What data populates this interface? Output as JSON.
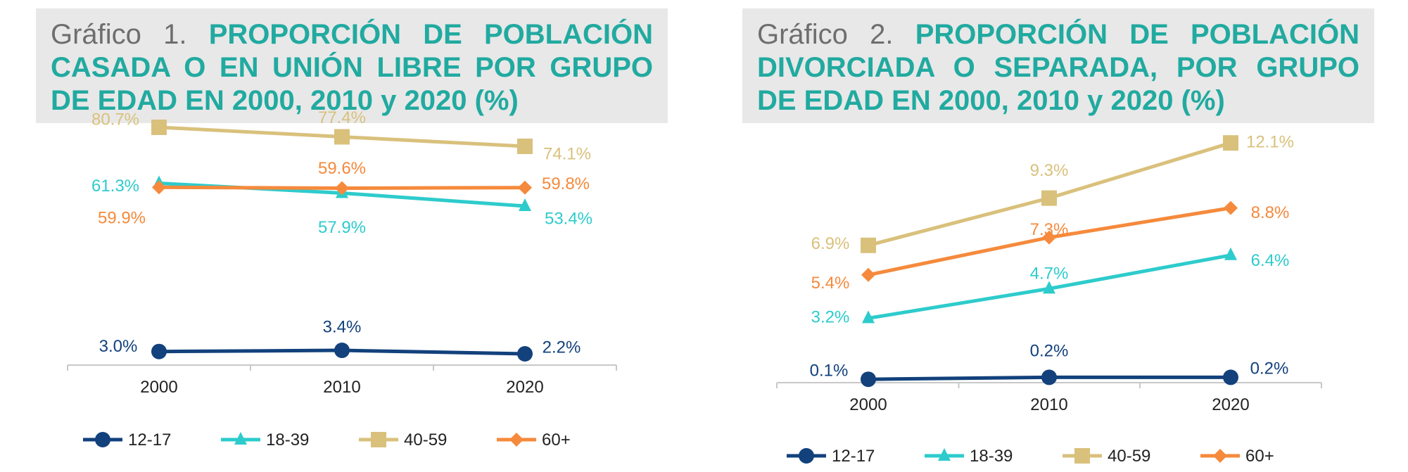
{
  "colors": {
    "s12_17": "#12417c",
    "s18_39": "#2ecbcc",
    "s40_59": "#d9c17c",
    "s60p": "#f58a3c",
    "title_accent": "#21aaa0",
    "title_prefix": "#6e6e6e",
    "title_bg": "#e8e8e8"
  },
  "chart_data": [
    {
      "type": "line",
      "title_prefix": "Gráfico 1.",
      "title": "PROPORCIÓN DE POBLACIÓN CASADA O EN UNIÓN LIBRE POR GRUPO DE EDAD EN 2000, 2010 y 2020 (%)",
      "xlabel": "",
      "ylabel": "",
      "x": [
        "2000",
        "2010",
        "2020"
      ],
      "ylim": [
        0,
        90
      ],
      "grid": false,
      "legend_position": "bottom",
      "series": [
        {
          "name": "12-17",
          "marker": "circle",
          "values": [
            3.0,
            3.4,
            2.2
          ],
          "labels": [
            "3.0%",
            "3.4%",
            "2.2%"
          ]
        },
        {
          "name": "18-39",
          "marker": "triangle",
          "values": [
            61.3,
            57.9,
            53.4
          ],
          "labels": [
            "61.3%",
            "57.9%",
            "53.4%"
          ]
        },
        {
          "name": "40-59",
          "marker": "square",
          "values": [
            80.7,
            77.4,
            74.1
          ],
          "labels": [
            "80.7%",
            "77.4%",
            "74.1%"
          ]
        },
        {
          "name": "60+",
          "marker": "diamond",
          "values": [
            59.9,
            59.6,
            59.8
          ],
          "labels": [
            "59.9%",
            "59.6%",
            "59.8%"
          ]
        }
      ]
    },
    {
      "type": "line",
      "title_prefix": "Gráfico 2.",
      "title": "PROPORCIÓN DE POBLACIÓN DIVORCIADA O SEPARADA, POR GRUPO DE EDAD EN 2000, 2010 y 2020 (%)",
      "xlabel": "",
      "ylabel": "",
      "x": [
        "2000",
        "2010",
        "2020"
      ],
      "ylim": [
        0,
        14
      ],
      "grid": false,
      "legend_position": "bottom",
      "series": [
        {
          "name": "12-17",
          "marker": "circle",
          "values": [
            0.1,
            0.2,
            0.2
          ],
          "labels": [
            "0.1%",
            "0.2%",
            "0.2%"
          ]
        },
        {
          "name": "18-39",
          "marker": "triangle",
          "values": [
            3.2,
            4.7,
            6.4
          ],
          "labels": [
            "3.2%",
            "4.7%",
            "6.4%"
          ]
        },
        {
          "name": "40-59",
          "marker": "square",
          "values": [
            6.9,
            9.3,
            12.1
          ],
          "labels": [
            "6.9%",
            "9.3%",
            "12.1%"
          ]
        },
        {
          "name": "60+",
          "marker": "diamond",
          "values": [
            5.4,
            7.3,
            8.8
          ],
          "labels": [
            "5.4%",
            "7.3%",
            "8.8%"
          ]
        }
      ]
    }
  ]
}
